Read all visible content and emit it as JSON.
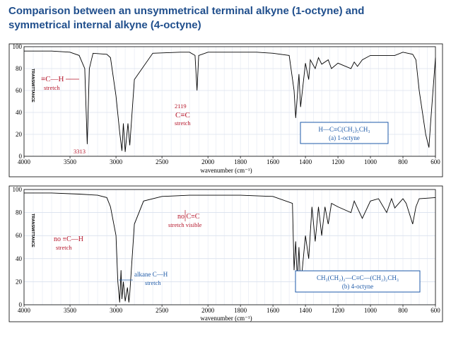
{
  "title": {
    "line1": "Comparison between an unsymmetrical terminal alkyne (1-octyne) and",
    "line2": "symmetrical internal alkyne (4-octyne)"
  },
  "colors": {
    "title": "#1f4e8c",
    "annotation_red": "#b5162b",
    "annotation_blue": "#1e5aa8",
    "grid": "#c9d3e6"
  },
  "chart_data": [
    {
      "type": "line",
      "xlabel": "wavenumber (cm⁻¹)",
      "ylabel": "TRANSMITTANCE",
      "xlim": [
        4000,
        600
      ],
      "ylim": [
        0,
        100
      ],
      "x_ticks": [
        "4000",
        "3500",
        "3000",
        "2500",
        "2000",
        "1800",
        "1600",
        "1400",
        "1200",
        "1000",
        "800",
        "600"
      ],
      "y_ticks": [
        "0",
        "20",
        "40",
        "60",
        "80",
        "100"
      ],
      "grid": true,
      "series": [
        {
          "x": [
            4000,
            3700,
            3500,
            3400,
            3340,
            3313,
            3290,
            3250,
            3100,
            3060,
            3000,
            2960,
            2935,
            2920,
            2900,
            2870,
            2850,
            2800,
            2600,
            2300,
            2200,
            2140,
            2119,
            2100,
            2000,
            1800,
            1700,
            1600,
            1500,
            1470,
            1460,
            1440,
            1430,
            1400,
            1380,
            1370,
            1340,
            1320,
            1300,
            1260,
            1240,
            1200,
            1120,
            1100,
            1080,
            1050,
            1000,
            900,
            850,
            800,
            740,
            720,
            700,
            660,
            640,
            630,
            600
          ],
          "y": [
            96,
            96,
            95,
            92,
            80,
            11,
            80,
            94,
            93,
            90,
            55,
            22,
            5,
            30,
            4,
            30,
            10,
            70,
            94,
            95,
            95,
            92,
            60,
            92,
            95,
            95,
            95,
            94,
            92,
            60,
            35,
            75,
            45,
            85,
            70,
            88,
            80,
            90,
            84,
            88,
            80,
            85,
            80,
            86,
            82,
            88,
            92,
            92,
            92,
            95,
            93,
            88,
            60,
            20,
            8,
            30,
            90
          ]
        }
      ],
      "annotations": {
        "ch_label": "≡C—H",
        "ch_sub": "stretch",
        "ch_value": "3313",
        "cc_value": "2119",
        "cc_label": "C≡C",
        "cc_sub": "stretch",
        "formula": "H—C≡C(CH₂)₅CH₃",
        "compound": "(a) 1-octyne"
      }
    },
    {
      "type": "line",
      "xlabel": "wavenumber (cm⁻¹)",
      "ylabel": "TRANSMITTANCE",
      "xlim": [
        4000,
        600
      ],
      "ylim": [
        0,
        100
      ],
      "x_ticks": [
        "4000",
        "3500",
        "3000",
        "2500",
        "2000",
        "1800",
        "1600",
        "1400",
        "1200",
        "1000",
        "800",
        "600"
      ],
      "y_ticks": [
        "0",
        "20",
        "40",
        "60",
        "80",
        "100"
      ],
      "grid": true,
      "series": [
        {
          "x": [
            4000,
            3700,
            3400,
            3200,
            3100,
            3060,
            3000,
            2980,
            2960,
            2945,
            2935,
            2920,
            2900,
            2875,
            2860,
            2850,
            2800,
            2700,
            2500,
            2200,
            2000,
            1800,
            1600,
            1480,
            1470,
            1460,
            1450,
            1440,
            1430,
            1400,
            1380,
            1360,
            1340,
            1320,
            1300,
            1280,
            1260,
            1240,
            1200,
            1120,
            1100,
            1050,
            1000,
            950,
            900,
            870,
            850,
            800,
            780,
            740,
            720,
            700,
            600
          ],
          "y": [
            97,
            97,
            96,
            95,
            93,
            85,
            60,
            20,
            2,
            30,
            5,
            20,
            3,
            15,
            2,
            10,
            70,
            90,
            94,
            95,
            95,
            95,
            94,
            88,
            30,
            55,
            20,
            50,
            15,
            60,
            40,
            85,
            55,
            85,
            60,
            85,
            70,
            88,
            85,
            80,
            90,
            75,
            90,
            92,
            80,
            92,
            84,
            92,
            88,
            70,
            85,
            92,
            93
          ]
        }
      ],
      "annotations": {
        "noch_label": "no ≡C—H",
        "noch_sub": "stretch",
        "nocc_label": "no C≡C",
        "nocc_sub": "stretch visible",
        "alkane_label": "alkane C—H",
        "alkane_sub": "stretch",
        "formula": "CH₃(CH₂)₂—C≡C—(CH₂)₂CH₃",
        "compound": "(b) 4-octyne"
      }
    }
  ]
}
